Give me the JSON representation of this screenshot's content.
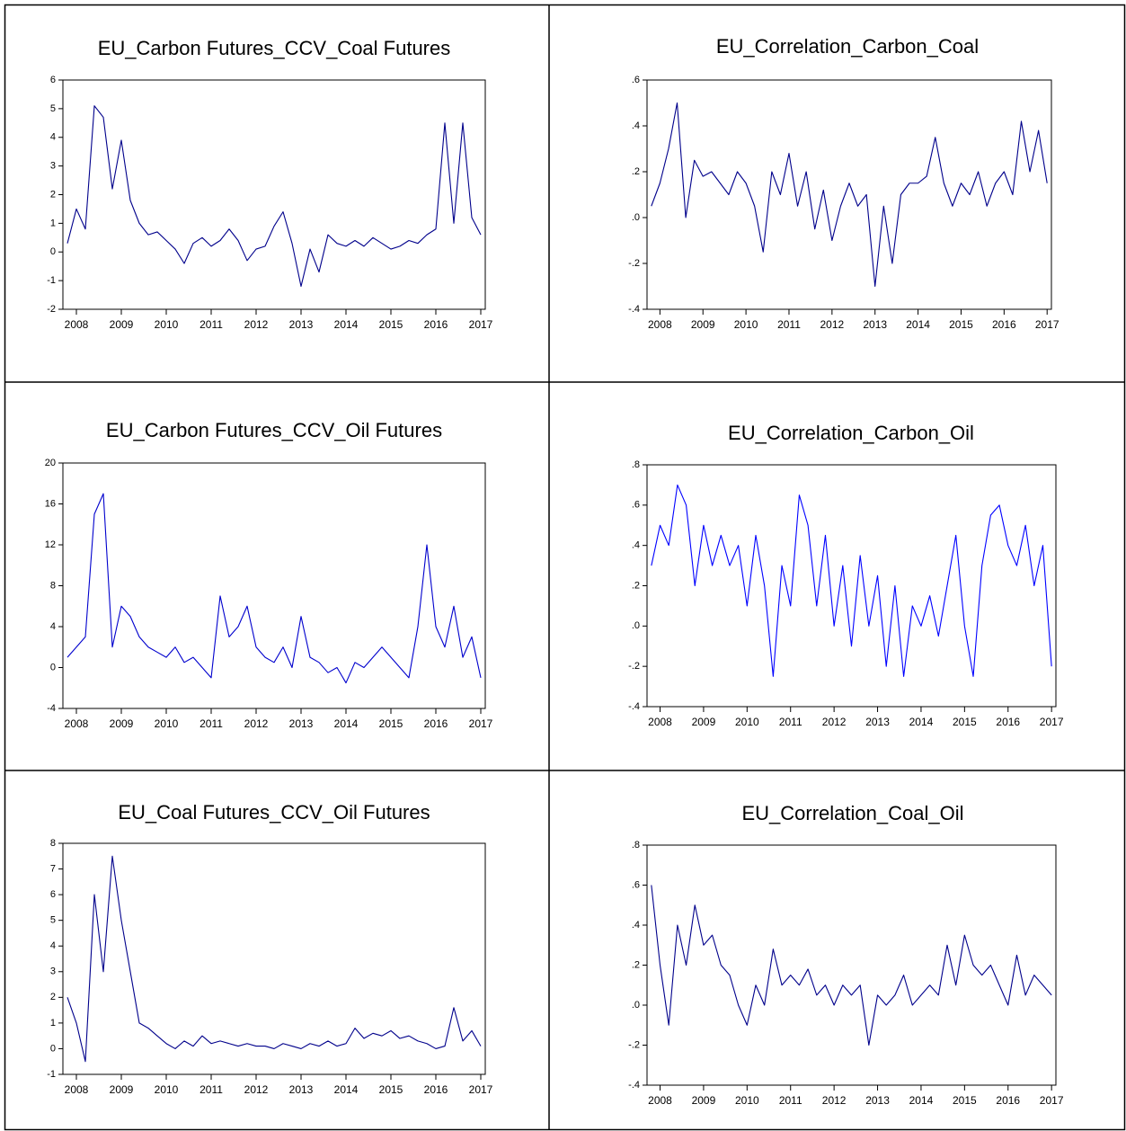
{
  "chart_data": [
    {
      "type": "line",
      "title": "EU_Carbon Futures_CCV_Coal Futures",
      "color": "#00008b",
      "x": [
        2007.8,
        2008.0,
        2008.2,
        2008.4,
        2008.6,
        2008.8,
        2009.0,
        2009.2,
        2009.4,
        2009.6,
        2009.8,
        2010.0,
        2010.2,
        2010.4,
        2010.6,
        2010.8,
        2011.0,
        2011.2,
        2011.4,
        2011.6,
        2011.8,
        2012.0,
        2012.2,
        2012.4,
        2012.6,
        2012.8,
        2013.0,
        2013.2,
        2013.4,
        2013.6,
        2013.8,
        2014.0,
        2014.2,
        2014.4,
        2014.6,
        2014.8,
        2015.0,
        2015.2,
        2015.4,
        2015.6,
        2015.8,
        2016.0,
        2016.2,
        2016.4,
        2016.6,
        2016.8,
        2017.0
      ],
      "values": [
        0.3,
        1.5,
        0.8,
        5.1,
        4.7,
        2.2,
        3.9,
        1.8,
        1.0,
        0.6,
        0.7,
        0.4,
        0.1,
        -0.4,
        0.3,
        0.5,
        0.2,
        0.4,
        0.8,
        0.4,
        -0.3,
        0.1,
        0.2,
        0.9,
        1.4,
        0.3,
        -1.2,
        0.1,
        -0.7,
        0.6,
        0.3,
        0.2,
        0.4,
        0.2,
        0.5,
        0.3,
        0.1,
        0.2,
        0.4,
        0.3,
        0.6,
        0.8,
        4.5,
        1.0,
        4.5,
        1.2,
        0.6
      ],
      "xlim": [
        2007.7,
        2017.1
      ],
      "xticks": [
        2008,
        2009,
        2010,
        2011,
        2012,
        2013,
        2014,
        2015,
        2016,
        2017
      ],
      "ylim": [
        -2,
        6
      ],
      "yticks": [
        -2,
        -1,
        0,
        1,
        2,
        3,
        4,
        5,
        6
      ]
    },
    {
      "type": "line",
      "title": "EU_Correlation_Carbon_Coal",
      "color": "#00008b",
      "x": [
        2007.8,
        2008.0,
        2008.2,
        2008.4,
        2008.6,
        2008.8,
        2009.0,
        2009.2,
        2009.4,
        2009.6,
        2009.8,
        2010.0,
        2010.2,
        2010.4,
        2010.6,
        2010.8,
        2011.0,
        2011.2,
        2011.4,
        2011.6,
        2011.8,
        2012.0,
        2012.2,
        2012.4,
        2012.6,
        2012.8,
        2013.0,
        2013.2,
        2013.4,
        2013.6,
        2013.8,
        2014.0,
        2014.2,
        2014.4,
        2014.6,
        2014.8,
        2015.0,
        2015.2,
        2015.4,
        2015.6,
        2015.8,
        2016.0,
        2016.2,
        2016.4,
        2016.6,
        2016.8,
        2017.0
      ],
      "values": [
        0.05,
        0.15,
        0.3,
        0.5,
        0.0,
        0.25,
        0.18,
        0.2,
        0.15,
        0.1,
        0.2,
        0.15,
        0.05,
        -0.15,
        0.2,
        0.1,
        0.28,
        0.05,
        0.2,
        -0.05,
        0.12,
        -0.1,
        0.05,
        0.15,
        0.05,
        0.1,
        -0.3,
        0.05,
        -0.2,
        0.1,
        0.15,
        0.15,
        0.18,
        0.35,
        0.15,
        0.05,
        0.15,
        0.1,
        0.2,
        0.05,
        0.15,
        0.2,
        0.1,
        0.42,
        0.2,
        0.38,
        0.15
      ],
      "xlim": [
        2007.7,
        2017.1
      ],
      "xticks": [
        2008,
        2009,
        2010,
        2011,
        2012,
        2013,
        2014,
        2015,
        2016,
        2017
      ],
      "ylim": [
        -0.4,
        0.6
      ],
      "yticks": [
        {
          "value": -0.4,
          "label": "-.4"
        },
        {
          "value": -0.2,
          "label": "-.2"
        },
        {
          "value": 0,
          "label": ".0"
        },
        {
          "value": 0.2,
          "label": ".2"
        },
        {
          "value": 0.4,
          "label": ".4"
        },
        {
          "value": 0.6,
          "label": ".6"
        }
      ]
    },
    {
      "type": "line",
      "title": "EU_Carbon Futures_CCV_Oil Futures",
      "color": "#0000cd",
      "x": [
        2007.8,
        2008.0,
        2008.2,
        2008.4,
        2008.6,
        2008.8,
        2009.0,
        2009.2,
        2009.4,
        2009.6,
        2009.8,
        2010.0,
        2010.2,
        2010.4,
        2010.6,
        2010.8,
        2011.0,
        2011.2,
        2011.4,
        2011.6,
        2011.8,
        2012.0,
        2012.2,
        2012.4,
        2012.6,
        2012.8,
        2013.0,
        2013.2,
        2013.4,
        2013.6,
        2013.8,
        2014.0,
        2014.2,
        2014.4,
        2014.6,
        2014.8,
        2015.0,
        2015.2,
        2015.4,
        2015.6,
        2015.8,
        2016.0,
        2016.2,
        2016.4,
        2016.6,
        2016.8,
        2017.0
      ],
      "values": [
        1,
        2,
        3,
        15,
        17,
        2,
        6,
        5,
        3,
        2,
        1.5,
        1,
        2,
        0.5,
        1,
        0,
        -1,
        7,
        3,
        4,
        6,
        2,
        1,
        0.5,
        2,
        0,
        5,
        1,
        0.5,
        -0.5,
        0,
        -1.5,
        0.5,
        0,
        1,
        2,
        1,
        0,
        -1,
        4,
        12,
        4,
        2,
        6,
        1,
        3,
        -1
      ],
      "xlim": [
        2007.7,
        2017.1
      ],
      "xticks": [
        2008,
        2009,
        2010,
        2011,
        2012,
        2013,
        2014,
        2015,
        2016,
        2017
      ],
      "ylim": [
        -4,
        20
      ],
      "yticks": [
        -4,
        0,
        4,
        8,
        12,
        16,
        20
      ]
    },
    {
      "type": "line",
      "title": "EU_Correlation_Carbon_Oil",
      "color": "#0000ff",
      "x": [
        2007.8,
        2008.0,
        2008.2,
        2008.4,
        2008.6,
        2008.8,
        2009.0,
        2009.2,
        2009.4,
        2009.6,
        2009.8,
        2010.0,
        2010.2,
        2010.4,
        2010.6,
        2010.8,
        2011.0,
        2011.2,
        2011.4,
        2011.6,
        2011.8,
        2012.0,
        2012.2,
        2012.4,
        2012.6,
        2012.8,
        2013.0,
        2013.2,
        2013.4,
        2013.6,
        2013.8,
        2014.0,
        2014.2,
        2014.4,
        2014.6,
        2014.8,
        2015.0,
        2015.2,
        2015.4,
        2015.6,
        2015.8,
        2016.0,
        2016.2,
        2016.4,
        2016.6,
        2016.8,
        2017.0
      ],
      "values": [
        0.3,
        0.5,
        0.4,
        0.7,
        0.6,
        0.2,
        0.5,
        0.3,
        0.45,
        0.3,
        0.4,
        0.1,
        0.45,
        0.2,
        -0.25,
        0.3,
        0.1,
        0.65,
        0.5,
        0.1,
        0.45,
        0.0,
        0.3,
        -0.1,
        0.35,
        0.0,
        0.25,
        -0.2,
        0.2,
        -0.25,
        0.1,
        0.0,
        0.15,
        -0.05,
        0.2,
        0.45,
        0.0,
        -0.25,
        0.3,
        0.55,
        0.6,
        0.4,
        0.3,
        0.5,
        0.2,
        0.4,
        -0.2
      ],
      "xlim": [
        2007.7,
        2017.1
      ],
      "xticks": [
        2008,
        2009,
        2010,
        2011,
        2012,
        2013,
        2014,
        2015,
        2016,
        2017
      ],
      "ylim": [
        -0.4,
        0.8
      ],
      "yticks": [
        {
          "value": -0.4,
          "label": "-.4"
        },
        {
          "value": -0.2,
          "label": "-.2"
        },
        {
          "value": 0,
          "label": ".0"
        },
        {
          "value": 0.2,
          "label": ".2"
        },
        {
          "value": 0.4,
          "label": ".4"
        },
        {
          "value": 0.6,
          "label": ".6"
        },
        {
          "value": 0.8,
          "label": ".8"
        }
      ]
    },
    {
      "type": "line",
      "title": "EU_Coal Futures_CCV_Oil Futures",
      "color": "#00008b",
      "x": [
        2007.8,
        2008.0,
        2008.2,
        2008.4,
        2008.6,
        2008.8,
        2009.0,
        2009.2,
        2009.4,
        2009.6,
        2009.8,
        2010.0,
        2010.2,
        2010.4,
        2010.6,
        2010.8,
        2011.0,
        2011.2,
        2011.4,
        2011.6,
        2011.8,
        2012.0,
        2012.2,
        2012.4,
        2012.6,
        2012.8,
        2013.0,
        2013.2,
        2013.4,
        2013.6,
        2013.8,
        2014.0,
        2014.2,
        2014.4,
        2014.6,
        2014.8,
        2015.0,
        2015.2,
        2015.4,
        2015.6,
        2015.8,
        2016.0,
        2016.2,
        2016.4,
        2016.6,
        2016.8,
        2017.0
      ],
      "values": [
        2,
        1,
        -0.5,
        6,
        3,
        7.5,
        5,
        3,
        1,
        0.8,
        0.5,
        0.2,
        0,
        0.3,
        0.1,
        0.5,
        0.2,
        0.3,
        0.2,
        0.1,
        0.2,
        0.1,
        0.1,
        0,
        0.2,
        0.1,
        0,
        0.2,
        0.1,
        0.3,
        0.1,
        0.2,
        0.8,
        0.4,
        0.6,
        0.5,
        0.7,
        0.4,
        0.5,
        0.3,
        0.2,
        0.0,
        0.1,
        1.6,
        0.3,
        0.7,
        0.1
      ],
      "xlim": [
        2007.7,
        2017.1
      ],
      "xticks": [
        2008,
        2009,
        2010,
        2011,
        2012,
        2013,
        2014,
        2015,
        2016,
        2017
      ],
      "ylim": [
        -1,
        8
      ],
      "yticks": [
        -1,
        0,
        1,
        2,
        3,
        4,
        5,
        6,
        7,
        8
      ]
    },
    {
      "type": "line",
      "title": "EU_Correlation_Coal_Oil",
      "color": "#00008b",
      "x": [
        2007.8,
        2008.0,
        2008.2,
        2008.4,
        2008.6,
        2008.8,
        2009.0,
        2009.2,
        2009.4,
        2009.6,
        2009.8,
        2010.0,
        2010.2,
        2010.4,
        2010.6,
        2010.8,
        2011.0,
        2011.2,
        2011.4,
        2011.6,
        2011.8,
        2012.0,
        2012.2,
        2012.4,
        2012.6,
        2012.8,
        2013.0,
        2013.2,
        2013.4,
        2013.6,
        2013.8,
        2014.0,
        2014.2,
        2014.4,
        2014.6,
        2014.8,
        2015.0,
        2015.2,
        2015.4,
        2015.6,
        2015.8,
        2016.0,
        2016.2,
        2016.4,
        2016.6,
        2016.8,
        2017.0
      ],
      "values": [
        0.6,
        0.2,
        -0.1,
        0.4,
        0.2,
        0.5,
        0.3,
        0.35,
        0.2,
        0.15,
        0.0,
        -0.1,
        0.1,
        0.0,
        0.28,
        0.1,
        0.15,
        0.1,
        0.18,
        0.05,
        0.1,
        0.0,
        0.1,
        0.05,
        0.1,
        -0.2,
        0.05,
        0.0,
        0.05,
        0.15,
        0.0,
        0.05,
        0.1,
        0.05,
        0.3,
        0.1,
        0.35,
        0.2,
        0.15,
        0.2,
        0.1,
        0.0,
        0.25,
        0.05,
        0.15,
        0.1,
        0.05
      ],
      "xlim": [
        2007.7,
        2017.1
      ],
      "xticks": [
        2008,
        2009,
        2010,
        2011,
        2012,
        2013,
        2014,
        2015,
        2016,
        2017
      ],
      "ylim": [
        -0.4,
        0.8
      ],
      "yticks": [
        {
          "value": -0.4,
          "label": "-.4"
        },
        {
          "value": -0.2,
          "label": "-.2"
        },
        {
          "value": 0,
          "label": ".0"
        },
        {
          "value": 0.2,
          "label": ".2"
        },
        {
          "value": 0.4,
          "label": ".4"
        },
        {
          "value": 0.6,
          "label": ".6"
        },
        {
          "value": 0.8,
          "label": ".8"
        }
      ]
    }
  ]
}
